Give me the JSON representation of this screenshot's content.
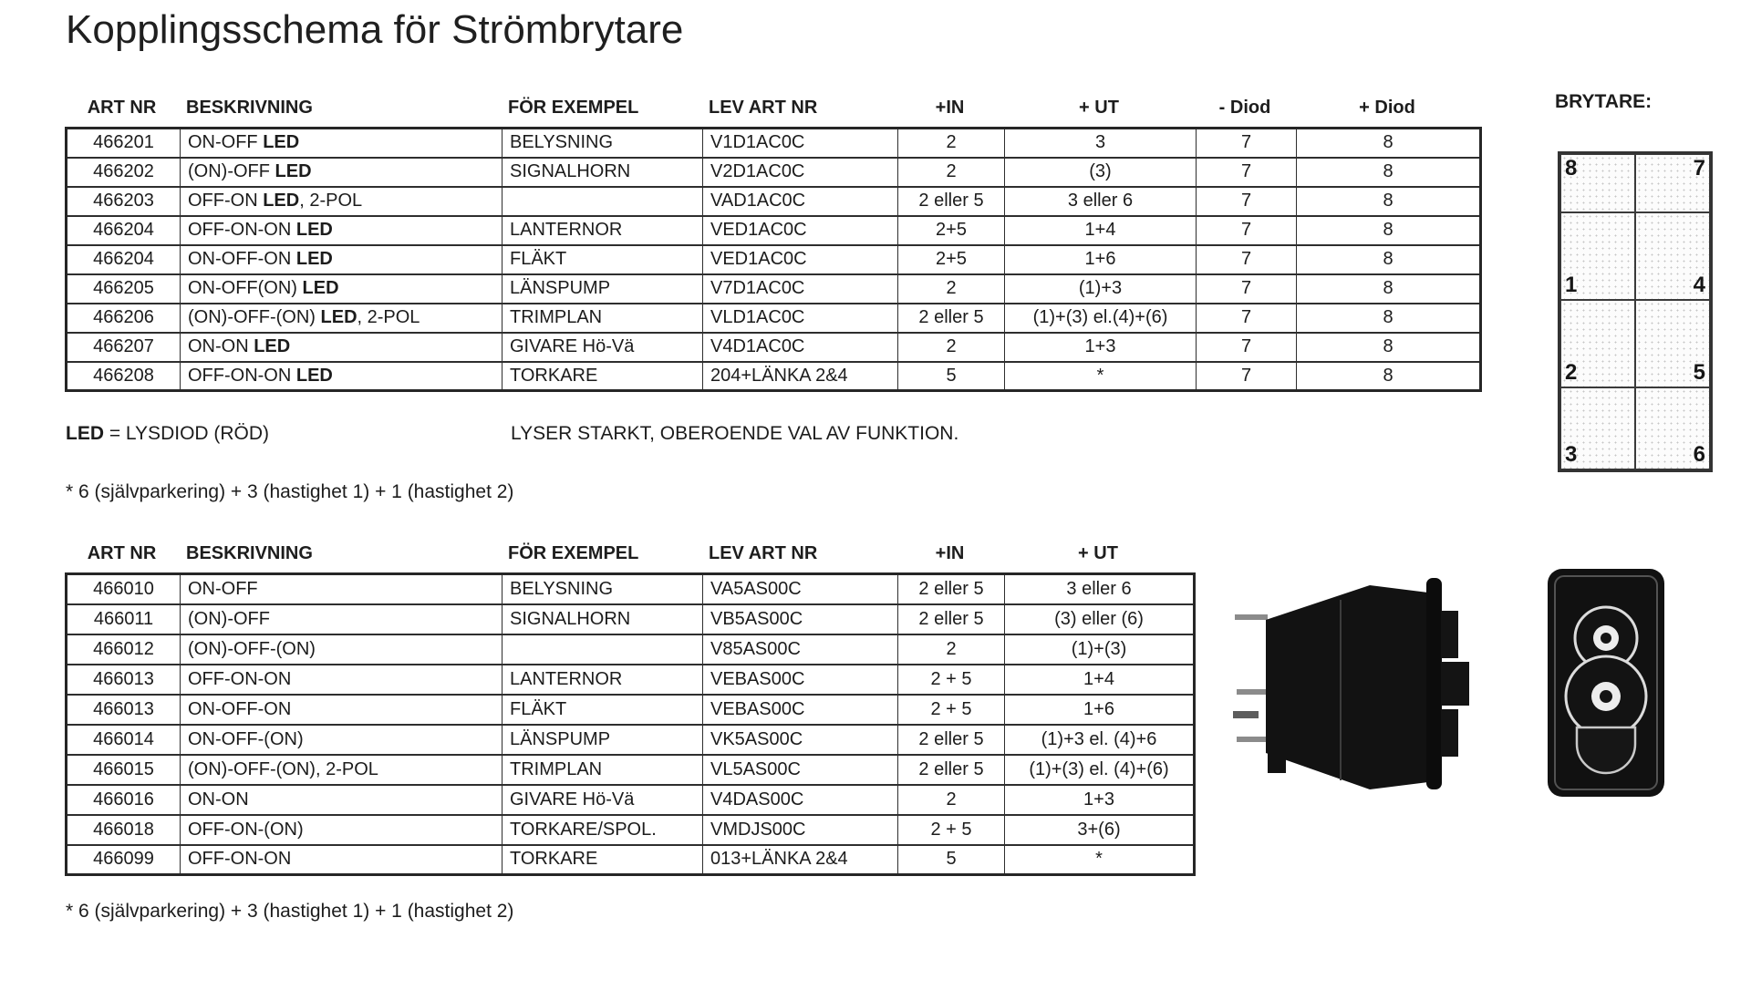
{
  "title": "Kopplingsschema för Strömbrytare",
  "colors": {
    "paper": "#ffffff",
    "text": "#1d1d1d",
    "border": "#2e2e2e"
  },
  "table1": {
    "headers": [
      "ART NR",
      "BESKRIVNING",
      "FÖR EXEMPEL",
      "LEV ART NR",
      "+IN",
      "+ UT",
      "- Diod",
      "+ Diod"
    ],
    "rows": [
      [
        "466201",
        "ON-OFF LED",
        "BELYSNING",
        "V1D1AC0C",
        "2",
        "3",
        "7",
        "8"
      ],
      [
        "466202",
        "(ON)-OFF LED",
        "SIGNALHORN",
        "V2D1AC0C",
        "2",
        "(3)",
        "7",
        "8"
      ],
      [
        "466203",
        "OFF-ON LED, 2-POL",
        "",
        "VAD1AC0C",
        "2 eller 5",
        "3 eller 6",
        "7",
        "8"
      ],
      [
        "466204",
        "OFF-ON-ON LED",
        "LANTERNOR",
        "VED1AC0C",
        "2+5",
        "1+4",
        "7",
        "8"
      ],
      [
        "466204",
        "ON-OFF-ON LED",
        "FLÄKT",
        "VED1AC0C",
        "2+5",
        "1+6",
        "7",
        "8"
      ],
      [
        "466205",
        "ON-OFF(ON) LED",
        "LÄNSPUMP",
        "V7D1AC0C",
        "2",
        "(1)+3",
        "7",
        "8"
      ],
      [
        "466206",
        "(ON)-OFF-(ON) LED, 2-POL",
        "TRIMPLAN",
        "VLD1AC0C",
        "2 eller 5",
        "(1)+(3) el.(4)+(6)",
        "7",
        "8"
      ],
      [
        "466207",
        "ON-ON LED",
        "GIVARE Hö-Vä",
        "V4D1AC0C",
        "2",
        "1+3",
        "7",
        "8"
      ],
      [
        "466208",
        "OFF-ON-ON LED",
        "TORKARE",
        "204+LÄNKA 2&4",
        "5",
        "*",
        "7",
        "8"
      ]
    ]
  },
  "table2": {
    "headers": [
      "ART NR",
      "BESKRIVNING",
      "FÖR EXEMPEL",
      "LEV ART NR",
      "+IN",
      "+ UT"
    ],
    "rows": [
      [
        "466010",
        "ON-OFF",
        "BELYSNING",
        "VA5AS00C",
        "2 eller 5",
        "3 eller 6"
      ],
      [
        "466011",
        "(ON)-OFF",
        "SIGNALHORN",
        "VB5AS00C",
        "2 eller 5",
        "(3) eller (6)"
      ],
      [
        "466012",
        "(ON)-OFF-(ON)",
        "",
        "V85AS00C",
        "2",
        "(1)+(3)"
      ],
      [
        "466013",
        "OFF-ON-ON",
        "LANTERNOR",
        "VEBAS00C",
        "2 + 5",
        "1+4"
      ],
      [
        "466013",
        "ON-OFF-ON",
        "FLÄKT",
        "VEBAS00C",
        "2 + 5",
        "1+6"
      ],
      [
        "466014",
        "ON-OFF-(ON)",
        "LÄNSPUMP",
        "VK5AS00C",
        "2 eller 5",
        "(1)+3 el. (4)+6"
      ],
      [
        "466015",
        "(ON)-OFF-(ON), 2-POL",
        "TRIMPLAN",
        "VL5AS00C",
        "2 eller 5",
        "(1)+(3) el. (4)+(6)"
      ],
      [
        "466016",
        "ON-ON",
        "GIVARE Hö-Vä",
        "V4DAS00C",
        "2",
        "1+3"
      ],
      [
        "466018",
        "OFF-ON-(ON)",
        "TORKARE/SPOL.",
        "VMDJS00C",
        "2 + 5",
        "3+(6)"
      ],
      [
        "466099",
        "OFF-ON-ON",
        "TORKARE",
        "013+LÄNKA 2&4",
        "5",
        "*"
      ]
    ]
  },
  "brytare": {
    "label": "BRYTARE:",
    "cells": [
      [
        "8",
        "7"
      ],
      [
        "1",
        "4"
      ],
      [
        "2",
        "5"
      ],
      [
        "3",
        "6"
      ]
    ]
  },
  "notes": {
    "led_label": "LED = LYSDIOD (RÖD)",
    "led_info": "LYSER STARKT, OBEROENDE VAL AV FUNKTION.",
    "footnote_top": "* 6 (självparkering) + 3 (hastighet 1) + 1 (hastighet 2)",
    "footnote_bottom": "* 6 (självparkering) + 3 (hastighet 1) + 1 (hastighet 2)"
  }
}
